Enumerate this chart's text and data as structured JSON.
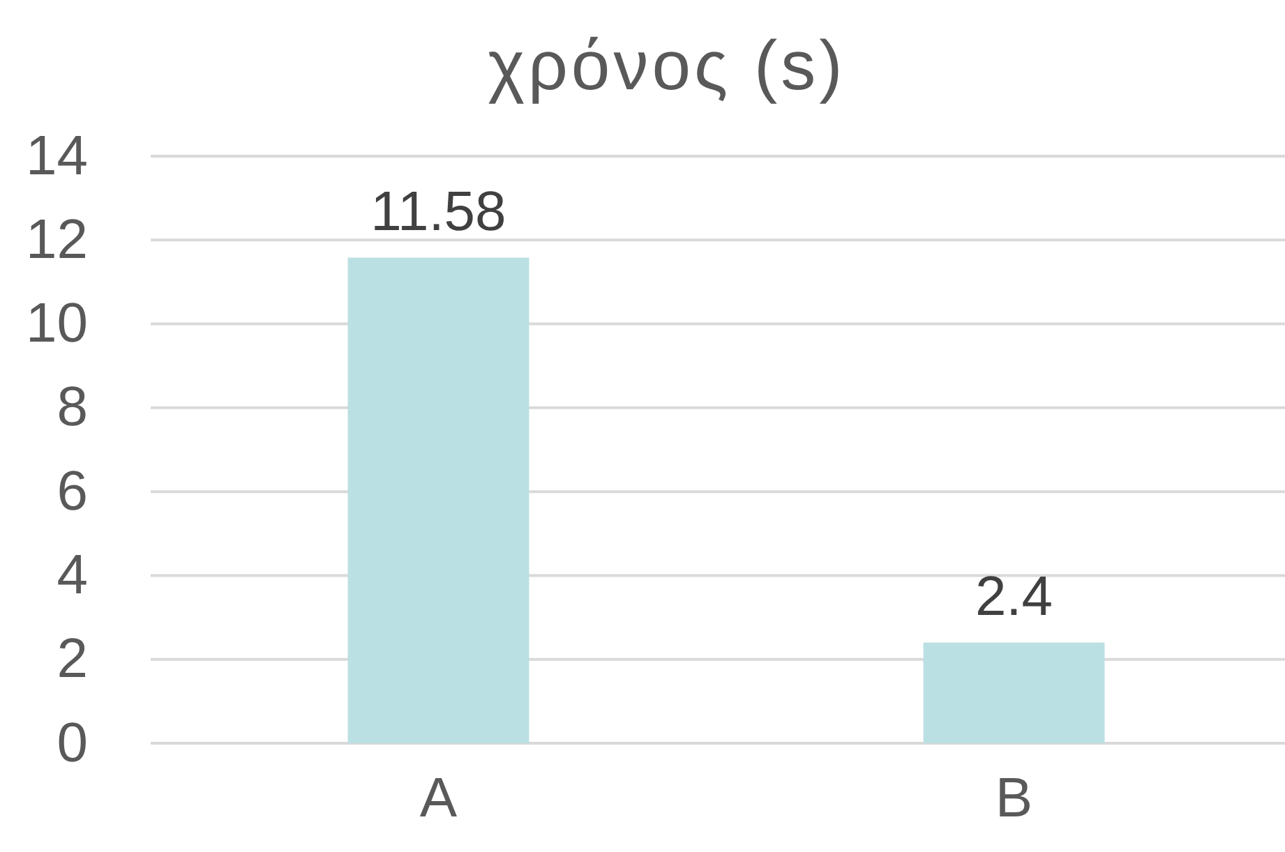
{
  "chart_data": {
    "type": "bar",
    "title": "χρόνος (s)",
    "categories": [
      "A",
      "B"
    ],
    "values": [
      11.58,
      2.4
    ],
    "color": "#bbe0e3",
    "ylim": [
      0,
      14
    ],
    "yticks": [
      0,
      2,
      4,
      6,
      8,
      10,
      12,
      14
    ],
    "grid": "y",
    "data_labels": true
  }
}
